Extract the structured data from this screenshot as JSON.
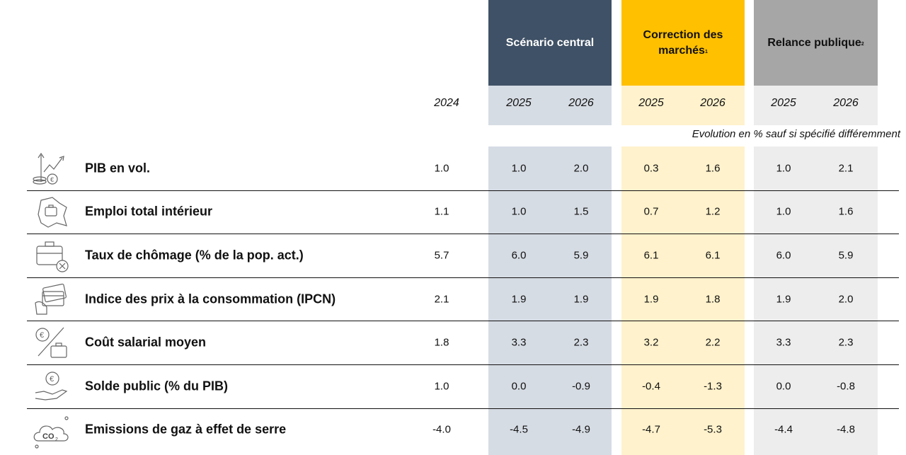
{
  "headers": {
    "scenario_central": "Scénario central",
    "correction_line1": "Correction des",
    "correction_line2": "marchés",
    "correction_sup": "1",
    "relance": "Relance publique",
    "relance_sup": "2"
  },
  "years": {
    "base": "2024",
    "c1": "2025",
    "c2": "2026",
    "m1": "2025",
    "m2": "2026",
    "r1": "2025",
    "r2": "2026"
  },
  "note": "Evolution en % sauf si spécifié différemment",
  "colors": {
    "central_dark": "#3f5166",
    "central_light": "#d6dce4",
    "correction_dark": "#ffc000",
    "correction_light": "#fff2cc",
    "relance_dark": "#a6a6a6",
    "relance_light": "#ededed"
  },
  "rows": [
    {
      "label": "PIB en vol.",
      "icon": "gdp-growth-icon",
      "values": [
        "1.0",
        "1.0",
        "2.0",
        "0.3",
        "1.6",
        "1.0",
        "2.1"
      ]
    },
    {
      "label": "Emploi total intérieur",
      "icon": "briefcase-map-icon",
      "values": [
        "1.1",
        "1.0",
        "1.5",
        "0.7",
        "1.2",
        "1.0",
        "1.6"
      ]
    },
    {
      "label": "Taux de chômage (% de la pop. act.)",
      "icon": "briefcase-cross-icon",
      "values": [
        "5.7",
        "6.0",
        "5.9",
        "6.1",
        "6.1",
        "6.0",
        "5.9"
      ]
    },
    {
      "label": "Indice des prix à la consommation (IPCN)",
      "icon": "credit-card-icon",
      "values": [
        "2.1",
        "1.9",
        "1.9",
        "1.9",
        "1.8",
        "1.9",
        "2.0"
      ]
    },
    {
      "label": "Coût salarial moyen",
      "icon": "euro-briefcase-icon",
      "values": [
        "1.8",
        "3.3",
        "2.3",
        "3.2",
        "2.2",
        "3.3",
        "2.3"
      ]
    },
    {
      "label": "Solde public (% du PIB)",
      "icon": "hand-euro-icon",
      "values": [
        "1.0",
        "0.0",
        "-0.9",
        "-0.4",
        "-1.3",
        "0.0",
        "-0.8"
      ]
    },
    {
      "label": "Emissions de gaz à effet de serre",
      "icon": "co2-cloud-icon",
      "values": [
        "-4.0",
        "-4.5",
        "-4.9",
        "-4.7",
        "-5.3",
        "-4.4",
        "-4.8"
      ]
    }
  ]
}
